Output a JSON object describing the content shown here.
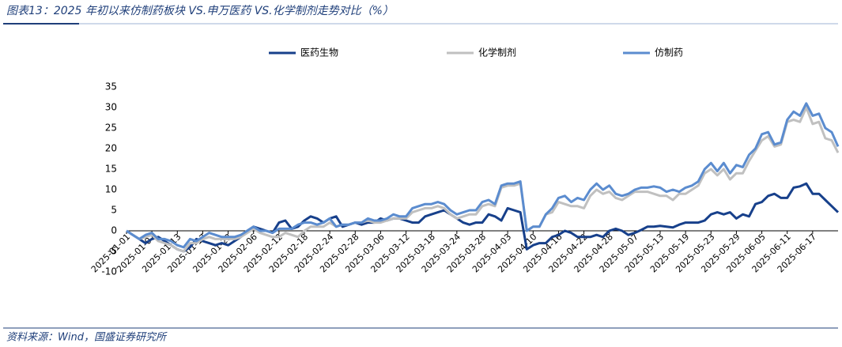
{
  "chart_data": {
    "type": "line",
    "title": "图表13：2025 年初以来仿制药板块 VS.申万医药 VS.化学制剂走势对比（%）",
    "source": "资料来源：Wind，国盛证券研究所",
    "categories": [
      "2025-01-01",
      null,
      null,
      null,
      "2025-01-07",
      null,
      null,
      null,
      "2025-01-13",
      null,
      null,
      null,
      "2025-01-17",
      null,
      null,
      null,
      "2025-01-23",
      null,
      null,
      null,
      "2025-02-06",
      null,
      null,
      null,
      "2025-02-12",
      null,
      null,
      null,
      "2025-02-18",
      null,
      null,
      null,
      "2025-02-24",
      null,
      null,
      null,
      "2025-02-28",
      null,
      null,
      null,
      "2025-03-06",
      null,
      null,
      null,
      "2025-03-12",
      null,
      null,
      null,
      "2025-03-18",
      null,
      null,
      null,
      "2025-03-24",
      null,
      null,
      null,
      "2025-03-28",
      null,
      null,
      null,
      "2025-04-03",
      null,
      null,
      null,
      "2025-04-10",
      null,
      null,
      null,
      "2025-04-16",
      null,
      null,
      null,
      "2025-04-22",
      null,
      null,
      null,
      "2025-04-28",
      null,
      null,
      null,
      "2025-05-07",
      null,
      null,
      null,
      "2025-05-13",
      null,
      null,
      null,
      "2025-05-19",
      null,
      null,
      null,
      "2025-05-23",
      null,
      null,
      null,
      "2025-05-29",
      null,
      null,
      null,
      "2025-06-05",
      null,
      null,
      null,
      "2025-06-11",
      null,
      null,
      null,
      "2025-06-17",
      null,
      null,
      null,
      null
    ],
    "series": [
      {
        "name": "医药生物",
        "color": "#17408b",
        "values": [
          0,
          -1,
          -2,
          -3,
          -2,
          -1.5,
          -2.5,
          -3.5,
          -4.5,
          -5,
          -4,
          -2,
          -2.5,
          -3,
          -3.5,
          -3,
          -3.5,
          -2.5,
          -1.5,
          0,
          1,
          0.5,
          0,
          -0.5,
          2,
          2.5,
          0.5,
          1,
          2.5,
          3.5,
          3,
          2,
          3,
          3.5,
          1,
          1.5,
          2,
          1.5,
          2,
          2,
          3,
          2.5,
          3,
          3,
          2.5,
          2,
          2,
          3.5,
          4,
          4.5,
          5,
          4,
          3,
          2,
          1.5,
          2,
          2,
          4,
          3.5,
          2.5,
          5.5,
          5,
          4.5,
          -4.5,
          -3.5,
          -3,
          -3,
          -1.5,
          -1,
          0,
          -0.5,
          -1.5,
          -1.5,
          -1.5,
          -1,
          -1.5,
          0,
          0.5,
          0,
          -1,
          -0.5,
          0.2,
          1,
          1,
          1.2,
          1,
          0.8,
          1.5,
          2,
          2,
          2,
          2.5,
          4,
          4.5,
          4,
          4.5,
          3,
          4,
          3.5,
          6.5,
          7,
          8.5,
          9,
          8,
          8,
          10.5,
          10.8,
          11.5,
          9,
          9,
          7.5,
          6,
          4.5
        ]
      },
      {
        "name": "化学制剂",
        "color": "#c0c0c0",
        "values": [
          0,
          -1,
          -2,
          -1.5,
          -1,
          -2.5,
          -3,
          -3.5,
          -4.5,
          -5,
          -3,
          -3,
          -2,
          -1.5,
          -2,
          -2,
          -2,
          -2,
          -1.5,
          -0.5,
          0.5,
          -0.5,
          -1,
          -1.5,
          -1.5,
          -0.5,
          -1,
          -1.5,
          0,
          1,
          1,
          1,
          2,
          1,
          1.5,
          1.5,
          2,
          2,
          2.5,
          2,
          2,
          2.5,
          3,
          3,
          3,
          4.5,
          5,
          5.5,
          5.5,
          6,
          5.5,
          4,
          3,
          3.5,
          4,
          4,
          6,
          6.5,
          6,
          10.5,
          11,
          11,
          11.5,
          0,
          1,
          1,
          4,
          4.5,
          7,
          6.5,
          6,
          6,
          5.5,
          8.5,
          10,
          9,
          9.5,
          8,
          7.5,
          8.5,
          9.5,
          9.5,
          9.5,
          9,
          8.5,
          8.5,
          7.5,
          9,
          9,
          10,
          11,
          14,
          15,
          13.5,
          15,
          12.5,
          14,
          14,
          17,
          19.5,
          22,
          23,
          20.5,
          21,
          26.5,
          27,
          26.5,
          30,
          26,
          26.5,
          22.5,
          22,
          19
        ]
      },
      {
        "name": "仿制药",
        "color": "#5b8ccf",
        "values": [
          0,
          -1,
          -2,
          -1,
          -0.5,
          -2,
          -2,
          -2.5,
          -3.5,
          -4,
          -2,
          -2.5,
          -1.5,
          -0.5,
          -1,
          -1.5,
          -1.5,
          -1.5,
          -1,
          0,
          1,
          0,
          0,
          -0.5,
          0.5,
          0.5,
          0.5,
          1.5,
          2,
          2,
          1.5,
          2,
          3,
          1,
          1.5,
          1.5,
          2,
          2,
          3,
          2.5,
          2.5,
          3,
          4,
          3.5,
          3.5,
          5.5,
          6,
          6.5,
          6.5,
          7,
          6.5,
          5,
          4,
          4.5,
          5,
          5,
          7,
          7.5,
          6.5,
          11,
          11.5,
          11.5,
          12,
          0,
          1,
          1,
          4,
          5.5,
          8,
          8.5,
          7,
          8,
          7.5,
          10,
          11.5,
          10,
          11,
          9,
          8.5,
          9,
          10,
          10.5,
          10.5,
          10.8,
          10.5,
          9.5,
          10,
          9.5,
          10.5,
          11,
          12,
          15,
          16.5,
          14.5,
          16.5,
          14,
          16,
          15.5,
          18.5,
          20,
          23.5,
          24,
          21,
          21.5,
          27,
          29,
          28,
          31,
          28,
          28.5,
          25,
          24,
          20.5
        ]
      }
    ],
    "ylim": [
      -10,
      35
    ],
    "yticks": [
      -10,
      -5,
      0,
      5,
      10,
      15,
      20,
      25,
      30,
      35
    ],
    "legend": "top",
    "grid": false
  }
}
